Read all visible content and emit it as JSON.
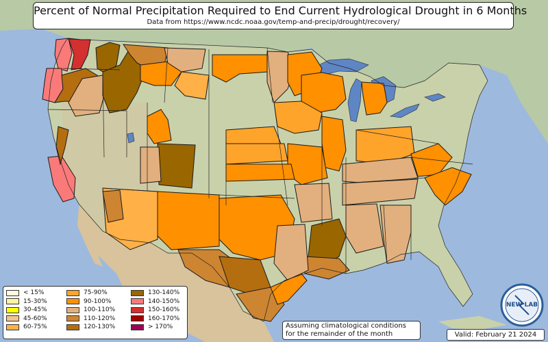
{
  "title": "Percent of Normal Precipitation Required to End Current Hydrological Drought in 6 Months",
  "subtitle": "Data from https://www.ncdc.noaa.gov/temp-and-precip/drought/recovery/",
  "legend": {
    "col1": [
      {
        "label": "< 15%",
        "color": "#fffbdc"
      },
      {
        "label": "15-30%",
        "color": "#fff3a0"
      },
      {
        "label": "30-45%",
        "color": "#ffff00"
      },
      {
        "label": "45-60%",
        "color": "#f2c48e"
      },
      {
        "label": "60-75%",
        "color": "#ffb046"
      }
    ],
    "col2": [
      {
        "label": "75-90%",
        "color": "#ffa42a"
      },
      {
        "label": "90-100%",
        "color": "#ff9000"
      },
      {
        "label": "100-110%",
        "color": "#e2b07e"
      },
      {
        "label": "110-120%",
        "color": "#cd8532"
      },
      {
        "label": "120-130%",
        "color": "#b46e10"
      }
    ],
    "col3": [
      {
        "label": "130-140%",
        "color": "#996600"
      },
      {
        "label": "140-150%",
        "color": "#fa7a7a"
      },
      {
        "label": "150-160%",
        "color": "#d43030"
      },
      {
        "label": "160-170%",
        "color": "#a00000"
      },
      {
        "label": "> 170%",
        "color": "#a0005a"
      }
    ]
  },
  "note_line1": "Assuming climatological conditions",
  "note_line2": "for the remainder of the month",
  "valid": "Valid: February 21 2024",
  "logo_text": "NEW LAB",
  "colors": {
    "ocean": "#9db9de",
    "land_east": "#c7d6b0",
    "land_west": "#cdbf9c",
    "canada": "#b9c9a6",
    "mexico": "#d8c39d",
    "lake": "#5f86c4",
    "border": "#222222"
  }
}
